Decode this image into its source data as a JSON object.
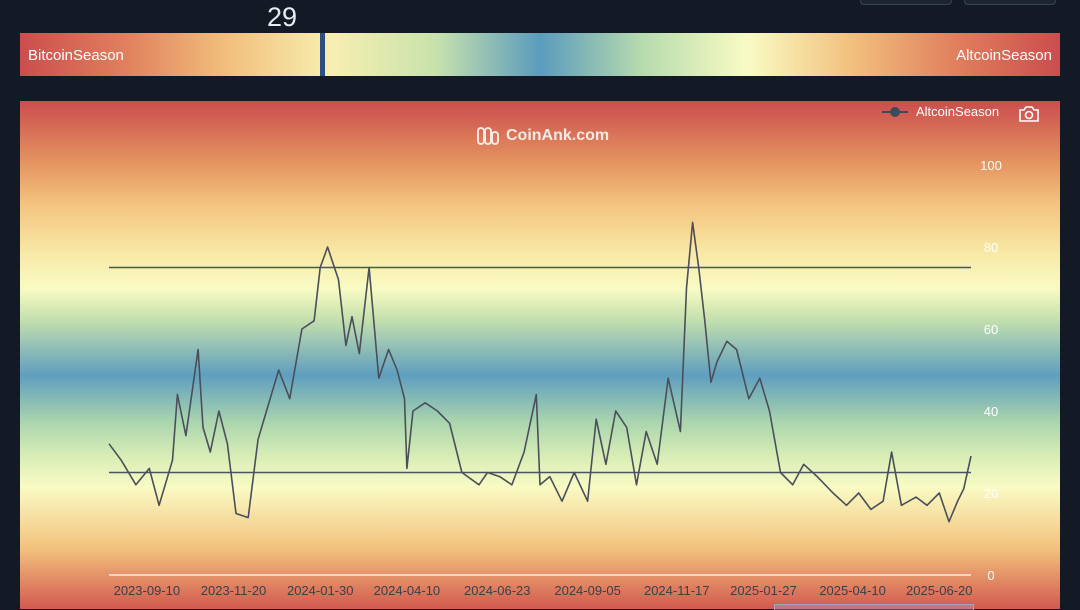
{
  "gauge": {
    "value": "29",
    "level": 29,
    "left_label": "BitcoinSeason",
    "right_label": "AltcoinSeason"
  },
  "watermark": "CoinAnk.com",
  "legend": {
    "series_name": "AltcoinSeason"
  },
  "icons": {
    "camera": "camera-icon",
    "watermark_logo": "coinank-logo-icon"
  },
  "colors": {
    "line": "#4a4f5a",
    "threshold": "#475466",
    "needle": "#2f4d80"
  },
  "chart_data": {
    "type": "line",
    "title": "",
    "xlabel": "",
    "ylabel": "",
    "ylim": [
      0,
      100
    ],
    "yticks": [
      0,
      20,
      40,
      60,
      80,
      100
    ],
    "xlim": [
      "2023-08-10",
      "2025-07-16"
    ],
    "xticks": [
      "2023-09-10",
      "2023-11-20",
      "2024-01-30",
      "2024-04-10",
      "2024-06-23",
      "2024-09-05",
      "2024-11-17",
      "2025-01-27",
      "2025-04-10",
      "2025-06-20"
    ],
    "reference_lines": [
      75,
      25
    ],
    "grid": false,
    "legend_position": "top-right",
    "series": [
      {
        "name": "AltcoinSeason",
        "x": [
          "2023-08-10",
          "2023-08-20",
          "2023-09-01",
          "2023-09-12",
          "2023-09-20",
          "2023-10-01",
          "2023-10-05",
          "2023-10-12",
          "2023-10-22",
          "2023-10-26",
          "2023-11-01",
          "2023-11-08",
          "2023-11-15",
          "2023-11-22",
          "2023-12-02",
          "2023-12-10",
          "2023-12-17",
          "2023-12-27",
          "2024-01-05",
          "2024-01-15",
          "2024-01-25",
          "2024-01-30",
          "2024-02-05",
          "2024-02-14",
          "2024-02-20",
          "2024-02-25",
          "2024-03-02",
          "2024-03-10",
          "2024-03-18",
          "2024-03-26",
          "2024-04-02",
          "2024-04-08",
          "2024-04-10",
          "2024-04-15",
          "2024-04-25",
          "2024-05-05",
          "2024-05-15",
          "2024-05-25",
          "2024-06-08",
          "2024-06-15",
          "2024-06-25",
          "2024-07-05",
          "2024-07-15",
          "2024-07-25",
          "2024-07-28",
          "2024-08-05",
          "2024-08-15",
          "2024-08-25",
          "2024-09-05",
          "2024-09-12",
          "2024-09-20",
          "2024-09-28",
          "2024-10-07",
          "2024-10-15",
          "2024-10-23",
          "2024-11-01",
          "2024-11-10",
          "2024-11-20",
          "2024-11-25",
          "2024-11-30",
          "2024-12-05",
          "2024-12-10",
          "2024-12-15",
          "2024-12-20",
          "2024-12-28",
          "2025-01-05",
          "2025-01-15",
          "2025-01-24",
          "2025-02-01",
          "2025-02-10",
          "2025-02-20",
          "2025-03-01",
          "2025-03-12",
          "2025-03-25",
          "2025-04-05",
          "2025-04-15",
          "2025-04-25",
          "2025-05-05",
          "2025-05-12",
          "2025-05-20",
          "2025-06-01",
          "2025-06-10",
          "2025-06-20",
          "2025-06-28",
          "2025-07-05",
          "2025-07-10",
          "2025-07-16"
        ],
        "values": [
          32,
          28,
          22,
          26,
          17,
          28,
          44,
          34,
          55,
          36,
          30,
          40,
          32,
          15,
          14,
          33,
          40,
          50,
          43,
          60,
          62,
          75,
          80,
          72,
          56,
          63,
          54,
          75,
          48,
          55,
          50,
          43,
          26,
          40,
          42,
          40,
          37,
          25,
          22,
          25,
          24,
          22,
          30,
          44,
          22,
          24,
          18,
          25,
          18,
          38,
          27,
          40,
          36,
          22,
          35,
          27,
          48,
          35,
          70,
          86,
          75,
          62,
          47,
          52,
          57,
          55,
          43,
          48,
          40,
          25,
          22,
          27,
          24,
          20,
          17,
          20,
          16,
          18,
          30,
          17,
          19,
          17,
          20,
          13,
          18,
          21,
          29
        ]
      }
    ]
  }
}
